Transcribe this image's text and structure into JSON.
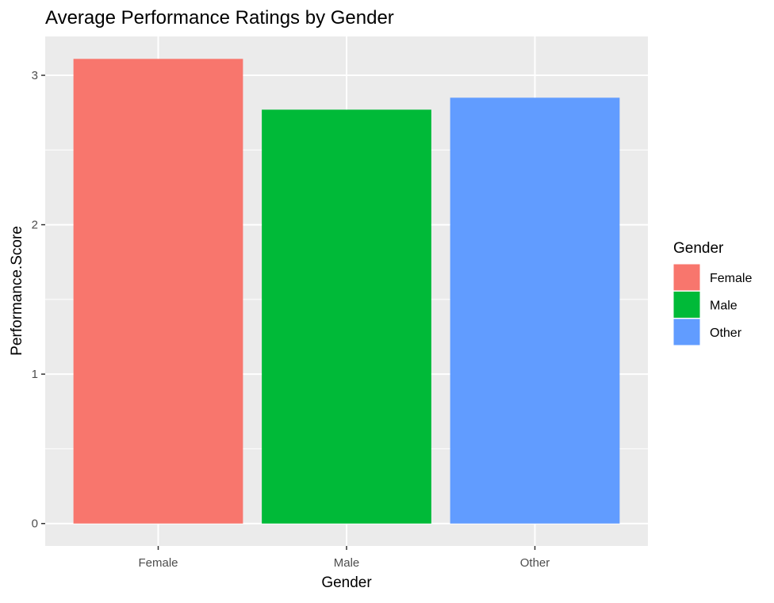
{
  "chart_data": {
    "type": "bar",
    "title": "Average Performance Ratings by Gender",
    "xlabel": "Gender",
    "ylabel": "Performance.Score",
    "categories": [
      "Female",
      "Male",
      "Other"
    ],
    "values": [
      3.11,
      2.77,
      2.85
    ],
    "colors": [
      "#F8766D",
      "#00BA38",
      "#619CFF"
    ],
    "ylim": [
      -0.15,
      3.26
    ],
    "yticks": [
      0,
      1,
      2,
      3
    ],
    "grid": true,
    "panel_background": "#EBEBEB",
    "legend": {
      "title": "Gender",
      "position": "right",
      "items": [
        {
          "label": "Female",
          "color": "#F8766D"
        },
        {
          "label": "Male",
          "color": "#00BA38"
        },
        {
          "label": "Other",
          "color": "#619CFF"
        }
      ]
    }
  }
}
